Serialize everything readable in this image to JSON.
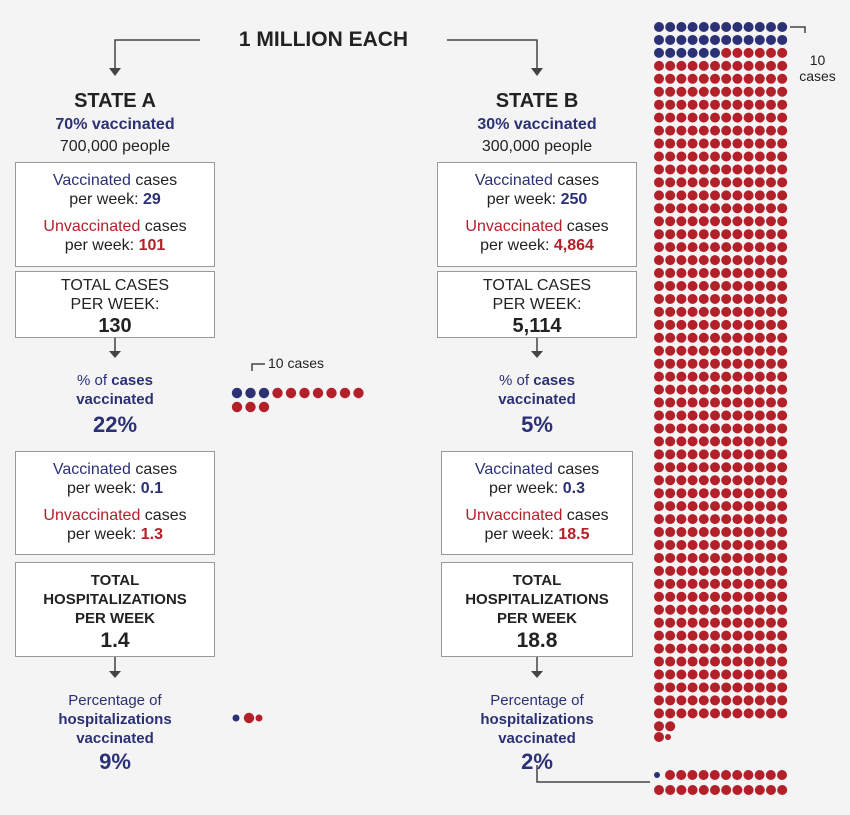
{
  "header": "1 MILLION EACH",
  "states": [
    {
      "name": "STATE A",
      "pct_vaccinated": "70% vaccinated",
      "people": "700,000 people",
      "cases": {
        "vaccinated": {
          "label": "Vaccinated",
          "suffix": "cases",
          "prefix": "per week:",
          "value": "29"
        },
        "unvaccinated": {
          "label": "Unvaccinated",
          "suffix": "cases",
          "prefix": "per week:",
          "value": "101"
        },
        "total_label": "TOTAL CASES PER WEEK:",
        "total": "130"
      },
      "cases_share": {
        "prefix": "% of",
        "emphasis": "cases",
        "suffix": "vaccinated",
        "value": "22%"
      },
      "hospitalizations": {
        "vaccinated": {
          "label": "Vaccinated",
          "suffix": "cases",
          "prefix": "per week:",
          "value": "0.1"
        },
        "unvaccinated": {
          "label": "Unvaccinated",
          "suffix": "cases",
          "prefix": "per week:",
          "value": "1.3"
        },
        "total_label": "TOTAL HOSPITALIZATIONS PER WEEK",
        "total": "1.4"
      },
      "hospitalizations_share": {
        "prefix": "Percentage of",
        "emphasis": "hospitalizations",
        "suffix": "vaccinated",
        "value": "9%"
      },
      "dot_legend": "10 cases"
    },
    {
      "name": "STATE B",
      "pct_vaccinated": "30% vaccinated",
      "people": "300,000 people",
      "cases": {
        "vaccinated": {
          "label": "Vaccinated",
          "suffix": "cases",
          "prefix": "per week:",
          "value": "250"
        },
        "unvaccinated": {
          "label": "Unvaccinated",
          "suffix": "cases",
          "prefix": "per week:",
          "value": "4,864"
        },
        "total_label": "TOTAL CASES PER WEEK:",
        "total": "5,114"
      },
      "cases_share": {
        "prefix": "% of",
        "emphasis": "cases",
        "suffix": "vaccinated",
        "value": "5%"
      },
      "hospitalizations": {
        "vaccinated": {
          "label": "Vaccinated",
          "suffix": "cases",
          "prefix": "per week:",
          "value": "0.3"
        },
        "unvaccinated": {
          "label": "Unvaccinated",
          "suffix": "cases",
          "prefix": "per week:",
          "value": "18.5"
        },
        "total_label": "TOTAL HOSPITALIZATIONS PER WEEK",
        "total": "18.8"
      },
      "hospitalizations_share": {
        "prefix": "Percentage of",
        "emphasis": "hospitalizations",
        "suffix": "vaccinated",
        "value": "2%"
      },
      "dot_legend": "10 cases"
    }
  ]
}
